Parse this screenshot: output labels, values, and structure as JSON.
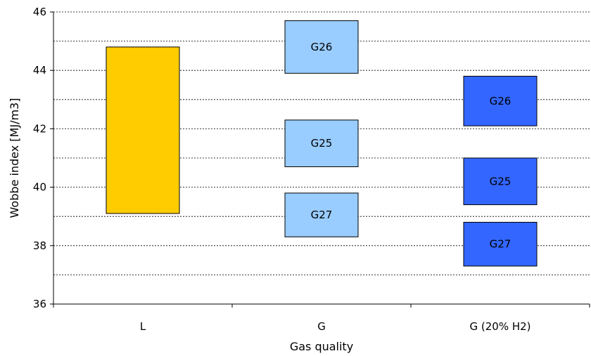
{
  "chart_data": {
    "type": "floating-bar",
    "title": "",
    "xlabel": "Gas quality",
    "ylabel": "Wobbe index [MJ/m3]",
    "ylim": [
      36,
      46
    ],
    "yticks": [
      "36",
      "38",
      "40",
      "42",
      "44",
      "46"
    ],
    "grid": {
      "major_y": true,
      "minor_y": true,
      "style": "dashed"
    },
    "categories": [
      "L",
      "G",
      "G (20% H2)"
    ],
    "colors": {
      "L": "#FFCC00",
      "G": "#99CCFF",
      "G (20% H2)": "#3366FF"
    },
    "bars": [
      {
        "category": "L",
        "label": "",
        "low": 39.1,
        "high": 44.8
      },
      {
        "category": "G",
        "label": "G26",
        "low": 43.9,
        "high": 45.7
      },
      {
        "category": "G",
        "label": "G25",
        "low": 40.7,
        "high": 42.3
      },
      {
        "category": "G",
        "label": "G27",
        "low": 38.3,
        "high": 39.8
      },
      {
        "category": "G (20% H2)",
        "label": "G26",
        "low": 42.1,
        "high": 43.8
      },
      {
        "category": "G (20% H2)",
        "label": "G25",
        "low": 39.4,
        "high": 41.0
      },
      {
        "category": "G (20% H2)",
        "label": "G27",
        "low": 37.3,
        "high": 38.8
      }
    ],
    "legend": "none"
  }
}
